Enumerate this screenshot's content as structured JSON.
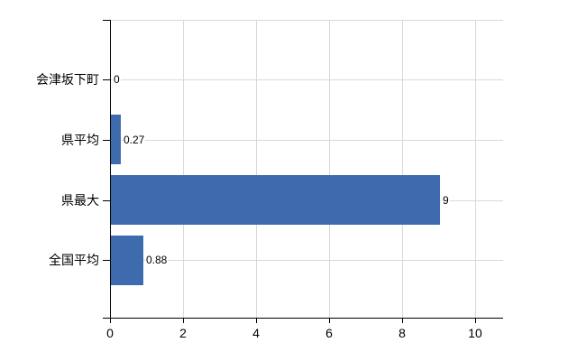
{
  "chart_data": {
    "type": "bar",
    "orientation": "horizontal",
    "title": "",
    "categories": [
      "会津坂下町",
      "県平均",
      "県最大",
      "全国平均"
    ],
    "values": [
      0,
      0.27,
      9,
      0.88
    ],
    "value_labels": [
      "0",
      "0.27",
      "9",
      "0.88"
    ],
    "x_ticks": [
      0,
      2,
      4,
      6,
      8,
      10
    ],
    "x_tick_labels": [
      "0",
      "2",
      "4",
      "6",
      "8",
      "10"
    ],
    "xlim": [
      0,
      10.77
    ],
    "grid": true,
    "legend": false,
    "bar_color": "#3d6bae",
    "grid_color": "#d9d9d9",
    "axis_color": "#000000",
    "text_color": "#000000",
    "background_color": "#ffffff"
  }
}
